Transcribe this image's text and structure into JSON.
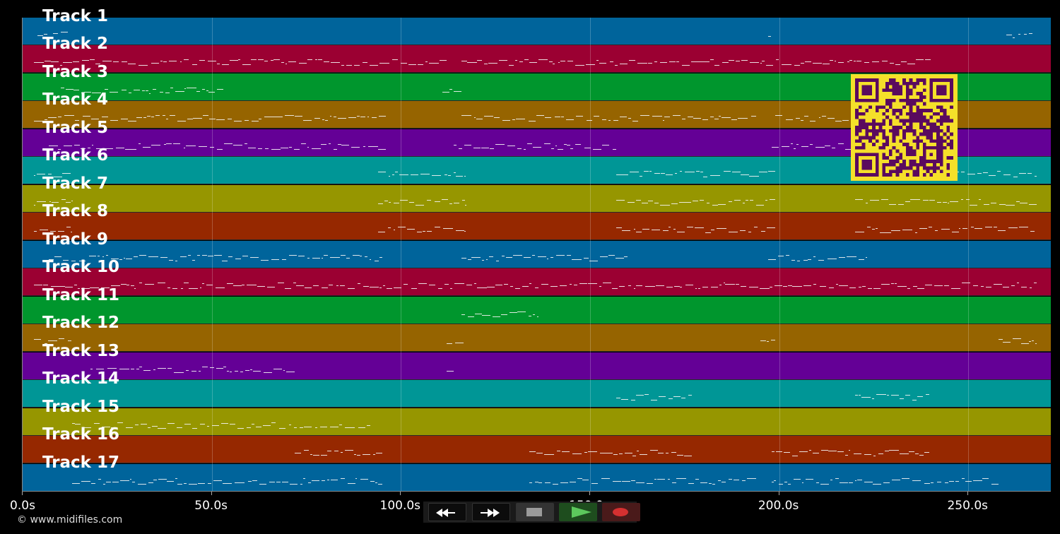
{
  "tracks": [
    {
      "label": "Track 1",
      "color": "#00649b"
    },
    {
      "label": "Track 2",
      "color": "#9b0032"
    },
    {
      "label": "Track 3",
      "color": "#00962d"
    },
    {
      "label": "Track 4",
      "color": "#966400"
    },
    {
      "label": "Track 5",
      "color": "#640096"
    },
    {
      "label": "Track 6",
      "color": "#009696"
    },
    {
      "label": "Track 7",
      "color": "#969600"
    },
    {
      "label": "Track 8",
      "color": "#962800"
    },
    {
      "label": "Track 9",
      "color": "#00649b"
    },
    {
      "label": "Track 10",
      "color": "#9b0032"
    },
    {
      "label": "Track 11",
      "color": "#00962d"
    },
    {
      "label": "Track 12",
      "color": "#966400"
    },
    {
      "label": "Track 13",
      "color": "#640096"
    },
    {
      "label": "Track 14",
      "color": "#009696"
    },
    {
      "label": "Track 15",
      "color": "#969600"
    },
    {
      "label": "Track 16",
      "color": "#962800"
    },
    {
      "label": "Track 17",
      "color": "#00649b"
    }
  ],
  "time_axis": {
    "max_seconds": 272,
    "ticks": [
      "0.0s",
      "50.0s",
      "100.0s",
      "150.0s",
      "200.0s",
      "250.0s"
    ],
    "tick_values": [
      0,
      50,
      100,
      150,
      200,
      250
    ]
  },
  "copyright": "© www.midifiles.com",
  "transport": {
    "rewind": "rewind-icon",
    "fast_forward": "fast-forward-icon",
    "stop": "stop-icon",
    "play": "play-icon",
    "record": "record-icon"
  },
  "qr_code": "qr-code-icon",
  "note_segments": [
    [
      1,
      [
        [
          4,
          12
        ],
        [
          197,
          198
        ],
        [
          260,
          267
        ]
      ]
    ],
    [
      2,
      [
        [
          3,
          112
        ],
        [
          116,
          240
        ]
      ]
    ],
    [
      3,
      [
        [
          10,
          53
        ],
        [
          111,
          116
        ]
      ]
    ],
    [
      4,
      [
        [
          3,
          96
        ],
        [
          116,
          194
        ],
        [
          199,
          222
        ]
      ]
    ],
    [
      5,
      [
        [
          7,
          96
        ],
        [
          114,
          157
        ],
        [
          198,
          222
        ]
      ]
    ],
    [
      6,
      [
        [
          3,
          13
        ],
        [
          94,
          117
        ],
        [
          157,
          199
        ],
        [
          245,
          268
        ]
      ]
    ],
    [
      7,
      [
        [
          3,
          13
        ],
        [
          94,
          117
        ],
        [
          157,
          199
        ],
        [
          220,
          268
        ]
      ]
    ],
    [
      8,
      [
        [
          3,
          13
        ],
        [
          94,
          117
        ],
        [
          157,
          199
        ],
        [
          220,
          268
        ]
      ]
    ],
    [
      9,
      [
        [
          7,
          95
        ],
        [
          116,
          160
        ],
        [
          197,
          223
        ]
      ]
    ],
    [
      10,
      [
        [
          3,
          268
        ]
      ]
    ],
    [
      11,
      [
        [
          116,
          136
        ]
      ]
    ],
    [
      12,
      [
        [
          3,
          13
        ],
        [
          112,
          117
        ],
        [
          195,
          199
        ],
        [
          258,
          268
        ]
      ]
    ],
    [
      13,
      [
        [
          18,
          72
        ],
        [
          112,
          114
        ]
      ]
    ],
    [
      14,
      [
        [
          157,
          177
        ],
        [
          220,
          240
        ]
      ]
    ],
    [
      15,
      [
        [
          13,
          92
        ]
      ]
    ],
    [
      16,
      [
        [
          72,
          95
        ],
        [
          134,
          177
        ],
        [
          198,
          240
        ]
      ]
    ],
    [
      17,
      [
        [
          13,
          95
        ],
        [
          134,
          194
        ],
        [
          198,
          258
        ]
      ]
    ]
  ]
}
